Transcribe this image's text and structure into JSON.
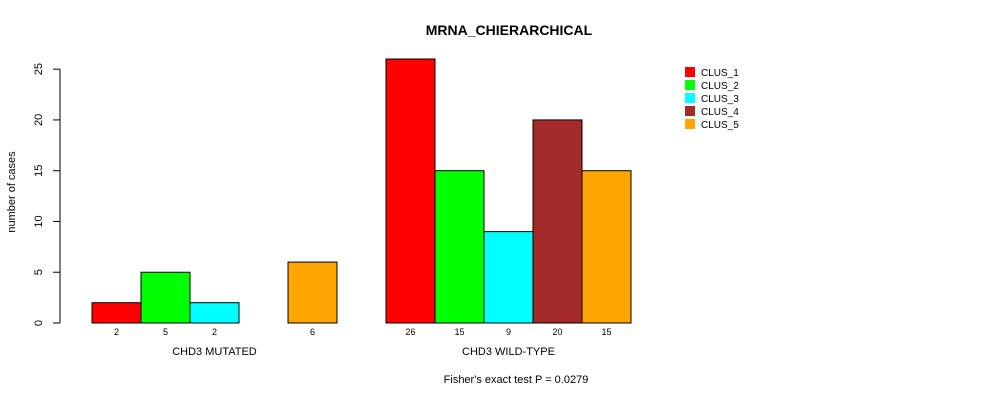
{
  "chart_data": {
    "type": "bar",
    "title": "MRNA_CHIERARCHICAL",
    "ylabel": "number of cases",
    "xlabel": "",
    "ylim": [
      0,
      26
    ],
    "yticks": [
      0,
      5,
      10,
      15,
      20,
      25
    ],
    "groups": [
      "CHD3 MUTATED",
      "CHD3 WILD-TYPE"
    ],
    "series": [
      {
        "name": "CLUS_1",
        "color": "#ff0000",
        "values": [
          2,
          26
        ],
        "labels": [
          "2",
          "26"
        ]
      },
      {
        "name": "CLUS_2",
        "color": "#00ff00",
        "values": [
          5,
          15
        ],
        "labels": [
          "5",
          "15"
        ]
      },
      {
        "name": "CLUS_3",
        "color": "#00ffff",
        "values": [
          2,
          9
        ],
        "labels": [
          "2",
          "9"
        ]
      },
      {
        "name": "CLUS_4",
        "color": "#a52a2a",
        "values": [
          0,
          20
        ],
        "labels": [
          "",
          "20"
        ]
      },
      {
        "name": "CLUS_5",
        "color": "#ffa500",
        "values": [
          6,
          15
        ],
        "labels": [
          "6",
          "15"
        ]
      }
    ],
    "footnote": "Fisher's exact test P = 0.0279",
    "legend_position": "top-right"
  }
}
